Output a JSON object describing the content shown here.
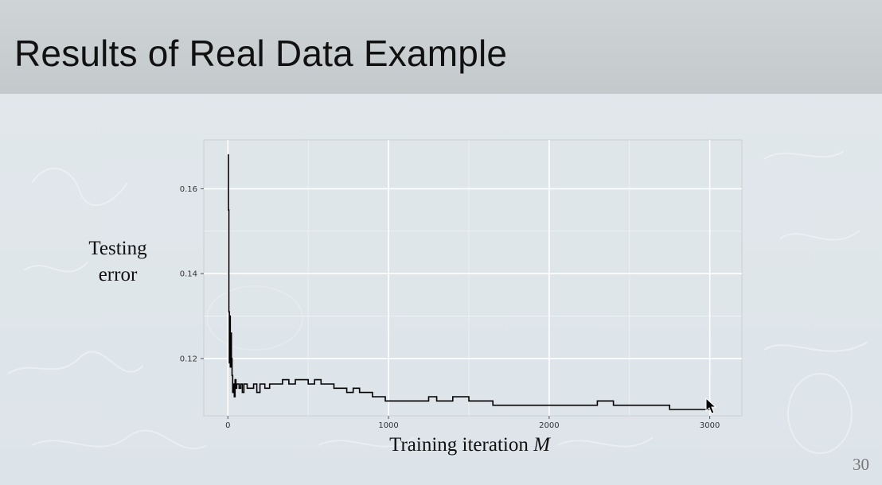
{
  "slide": {
    "title": "Results of Real Data Example",
    "page_number": "30"
  },
  "chart_data": {
    "type": "line",
    "title": "",
    "ylabel_line1": "Testing",
    "ylabel_line2": "error",
    "xlabel_text": "Training iteration ",
    "xlabel_var": "M",
    "xlim": [
      -150,
      3200
    ],
    "ylim": [
      0.1065,
      0.1715
    ],
    "x_ticks": [
      0,
      1000,
      2000,
      3000
    ],
    "x_tick_labels": [
      "0",
      "1000",
      "2000",
      "3000"
    ],
    "y_ticks": [
      0.12,
      0.14,
      0.16
    ],
    "y_tick_labels": [
      "0.12",
      "0.14",
      "0.16"
    ],
    "grid": true,
    "series": [
      {
        "color": "#000000",
        "x": [
          0,
          3,
          6,
          9,
          12,
          15,
          18,
          22,
          26,
          30,
          35,
          40,
          45,
          50,
          55,
          60,
          70,
          80,
          90,
          100,
          120,
          140,
          160,
          180,
          200,
          230,
          260,
          300,
          340,
          380,
          420,
          460,
          500,
          540,
          580,
          620,
          660,
          700,
          740,
          780,
          820,
          860,
          900,
          940,
          980,
          1000,
          1050,
          1100,
          1150,
          1200,
          1250,
          1300,
          1350,
          1400,
          1450,
          1500,
          1550,
          1600,
          1650,
          1700,
          1800,
          1900,
          2000,
          2100,
          2150,
          2200,
          2300,
          2400,
          2500,
          2600,
          2700,
          2750,
          2800,
          2850,
          2900,
          2950,
          3000
        ],
        "y": [
          0.168,
          0.155,
          0.131,
          0.119,
          0.13,
          0.118,
          0.126,
          0.12,
          0.116,
          0.112,
          0.114,
          0.111,
          0.115,
          0.113,
          0.114,
          0.114,
          0.113,
          0.114,
          0.112,
          0.114,
          0.113,
          0.113,
          0.114,
          0.112,
          0.114,
          0.113,
          0.114,
          0.114,
          0.115,
          0.114,
          0.115,
          0.115,
          0.114,
          0.115,
          0.114,
          0.114,
          0.113,
          0.113,
          0.112,
          0.113,
          0.112,
          0.112,
          0.111,
          0.111,
          0.11,
          0.11,
          0.11,
          0.11,
          0.11,
          0.11,
          0.111,
          0.11,
          0.11,
          0.111,
          0.111,
          0.11,
          0.11,
          0.11,
          0.109,
          0.109,
          0.109,
          0.109,
          0.109,
          0.109,
          0.109,
          0.109,
          0.11,
          0.109,
          0.109,
          0.109,
          0.109,
          0.108,
          0.108,
          0.108,
          0.108,
          0.108,
          0.108
        ]
      }
    ]
  }
}
